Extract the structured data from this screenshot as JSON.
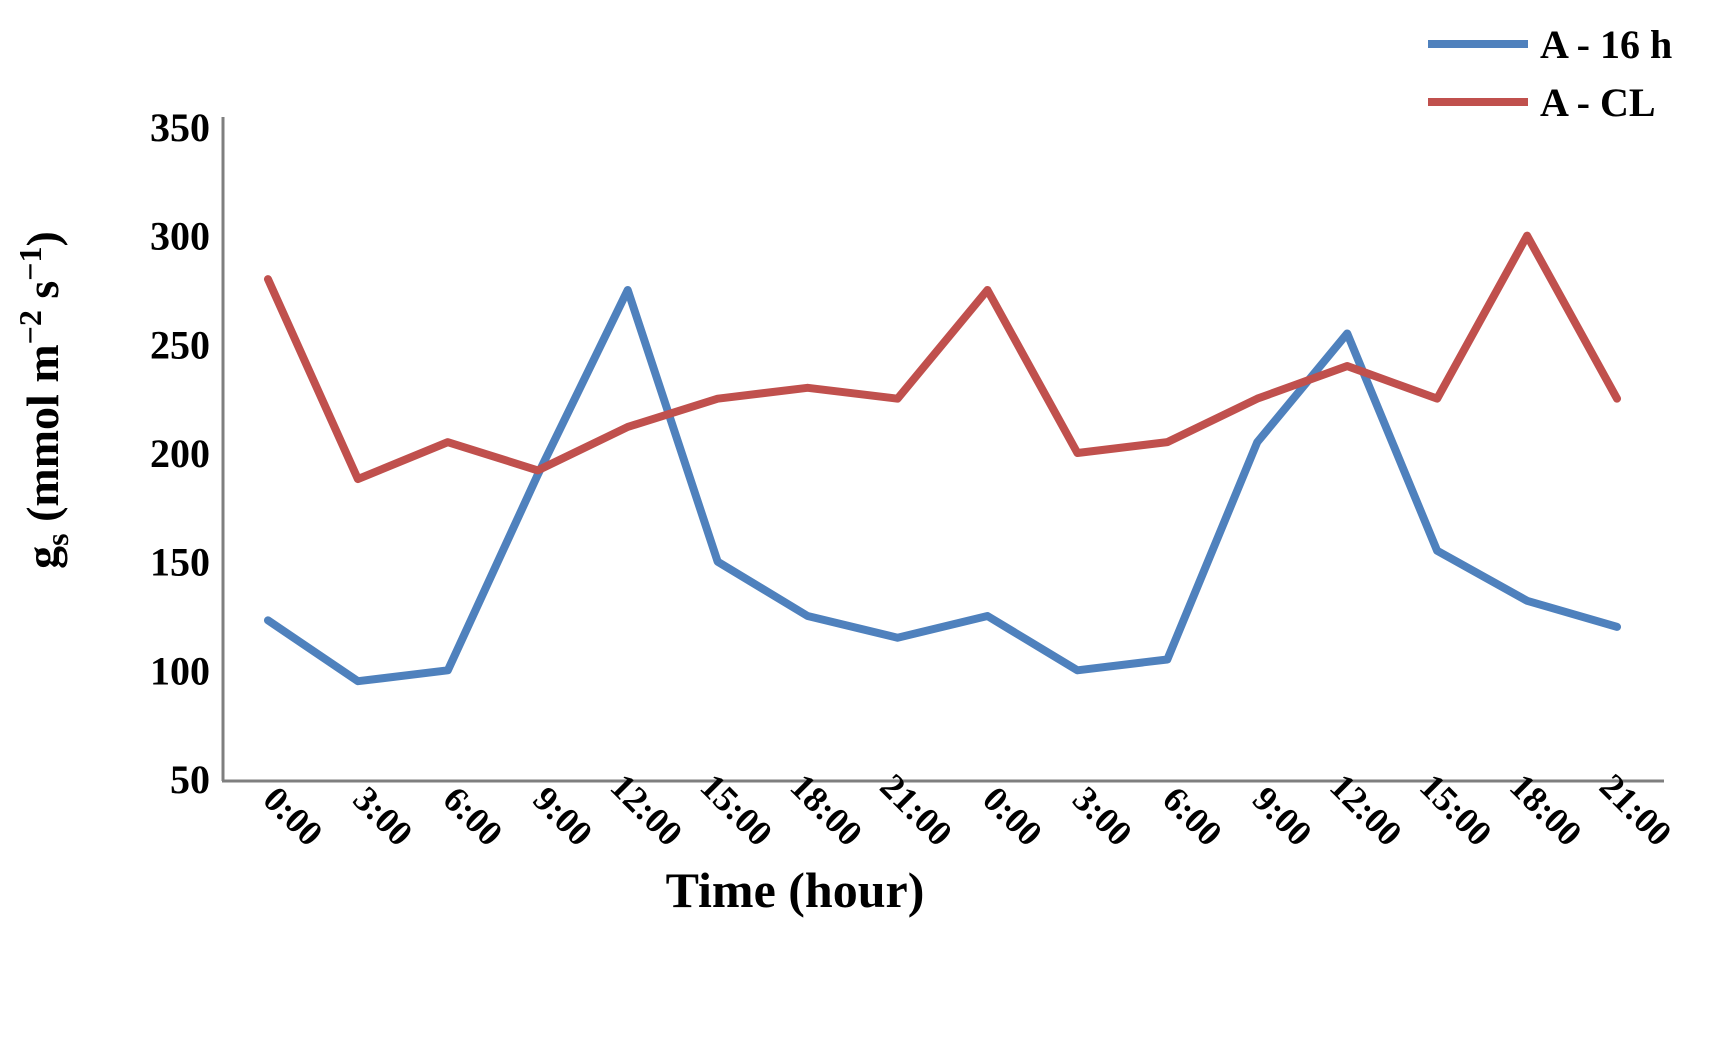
{
  "chart_data": {
    "type": "line",
    "title": "",
    "categories": [
      "0:00",
      "3:00",
      "6:00",
      "9:00",
      "12:00",
      "15:00",
      "18:00",
      "21:00",
      "0:00",
      "3:00",
      "6:00",
      "9:00",
      "12:00",
      "15:00",
      "18:00",
      "21:00"
    ],
    "series": [
      {
        "name": "A - 16 h",
        "color": "#4F81BD",
        "values": [
          123,
          95,
          100,
          190,
          275,
          150,
          125,
          115,
          125,
          100,
          105,
          205,
          255,
          155,
          132,
          120
        ]
      },
      {
        "name": "A - CL",
        "color": "#C0504D",
        "values": [
          280,
          188,
          205,
          192,
          212,
          225,
          230,
          225,
          275,
          200,
          205,
          225,
          240,
          225,
          300,
          225
        ]
      }
    ],
    "xlabel": "Time (hour)",
    "ylabel": "gs (mmol m−2 s−1)",
    "ylabel_parts": {
      "base": "g",
      "sub": "s",
      "mid": " (mmol m",
      "sup1": "−2",
      "mid2": " s",
      "sup2": "−1",
      "end": ")"
    },
    "ylim": [
      50,
      350
    ],
    "yticks": [
      350,
      300,
      250,
      200,
      150,
      100,
      50
    ],
    "grid": false,
    "legend_position": "top-right",
    "axis_color": "#7f7f7f",
    "x_tick_rotation": 45
  }
}
